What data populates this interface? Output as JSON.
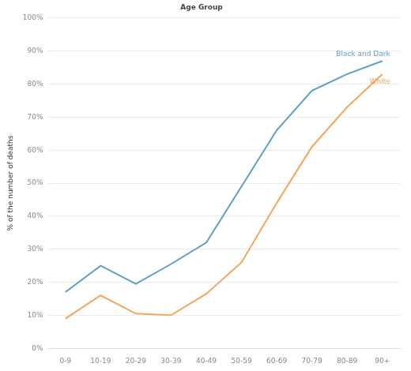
{
  "chart_data": {
    "type": "line",
    "title": "Age Group",
    "y_label": "% of the number of deaths",
    "categories": [
      "0-9",
      "10-19",
      "20-29",
      "30-39",
      "40-49",
      "50-59",
      "60-69",
      "70-79",
      "80-89",
      "90+"
    ],
    "series": [
      {
        "name": "Black and Dark",
        "color": "#5b9ec9",
        "values": [
          17,
          25,
          19.5,
          25.5,
          32,
          49,
          66,
          78,
          83,
          87
        ]
      },
      {
        "name": "White",
        "color": "#f5a55c",
        "values": [
          9,
          16,
          10.5,
          10,
          16.5,
          26,
          44,
          61,
          73,
          83
        ]
      }
    ],
    "ylim": [
      0,
      100
    ],
    "yticks": [
      {
        "value": 0,
        "label": "0%"
      },
      {
        "value": 10,
        "label": "10%"
      },
      {
        "value": 20,
        "label": "20%"
      },
      {
        "value": 30,
        "label": "30%"
      },
      {
        "value": 40,
        "label": "40%"
      },
      {
        "value": 50,
        "label": "50%"
      },
      {
        "value": 60,
        "label": "60%"
      },
      {
        "value": 70,
        "label": "70%"
      },
      {
        "value": 80,
        "label": "80%"
      },
      {
        "value": 90,
        "label": "90%"
      },
      {
        "value": 100,
        "label": "100%"
      }
    ],
    "grid": true
  }
}
